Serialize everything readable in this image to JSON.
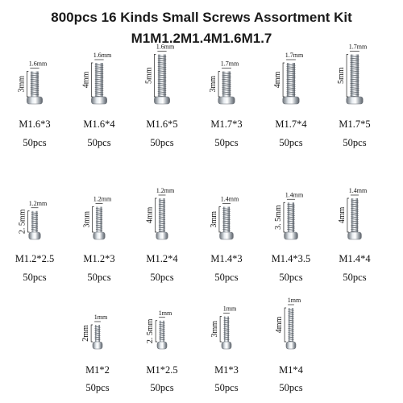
{
  "title_line1": "800pcs 16 Kinds Small Screws Assortment Kit",
  "title_line2": "M1M1.2M1.4M1.6M1.7",
  "screws": [
    {
      "name": "M1.6*3",
      "qty": "50pcs",
      "head": "1.6mm",
      "len": "3mm",
      "mm_len": 3,
      "mm_d": 1.6
    },
    {
      "name": "M1.6*4",
      "qty": "50pcs",
      "head": "1.6mm",
      "len": "4mm",
      "mm_len": 4,
      "mm_d": 1.6
    },
    {
      "name": "M1.6*5",
      "qty": "50pcs",
      "head": "1.6mm",
      "len": "5mm",
      "mm_len": 5,
      "mm_d": 1.6
    },
    {
      "name": "M1.7*3",
      "qty": "50pcs",
      "head": "1.7mm",
      "len": "3mm",
      "mm_len": 3,
      "mm_d": 1.7
    },
    {
      "name": "M1.7*4",
      "qty": "50pcs",
      "head": "1.7mm",
      "len": "4mm",
      "mm_len": 4,
      "mm_d": 1.7
    },
    {
      "name": "M1.7*5",
      "qty": "50pcs",
      "head": "1.7mm",
      "len": "5mm",
      "mm_len": 5,
      "mm_d": 1.7
    },
    {
      "name": "M1.2*2.5",
      "qty": "50pcs",
      "head": "1.2mm",
      "len": "2. 5mm",
      "mm_len": 2.5,
      "mm_d": 1.2
    },
    {
      "name": "M1.2*3",
      "qty": "50pcs",
      "head": "1.2mm",
      "len": "3mm",
      "mm_len": 3,
      "mm_d": 1.2
    },
    {
      "name": "M1.2*4",
      "qty": "50pcs",
      "head": "1.2mm",
      "len": "4mm",
      "mm_len": 4,
      "mm_d": 1.2
    },
    {
      "name": "M1.4*3",
      "qty": "50pcs",
      "head": "1.4mm",
      "len": "3mm",
      "mm_len": 3,
      "mm_d": 1.4
    },
    {
      "name": "M1.4*3.5",
      "qty": "50pcs",
      "head": "1.4mm",
      "len": "3. 5mm",
      "mm_len": 3.5,
      "mm_d": 1.4
    },
    {
      "name": "M1.4*4",
      "qty": "50pcs",
      "head": "1.4mm",
      "len": "4mm",
      "mm_len": 4,
      "mm_d": 1.4
    },
    {
      "name": "M1*2",
      "qty": "50pcs",
      "head": "1mm",
      "len": "2mm",
      "mm_len": 2,
      "mm_d": 1
    },
    {
      "name": "M1*2.5",
      "qty": "50pcs",
      "head": "1mm",
      "len": "2. 5mm",
      "mm_len": 2.5,
      "mm_d": 1
    },
    {
      "name": "M1*3",
      "qty": "50pcs",
      "head": "1mm",
      "len": "3mm",
      "mm_len": 3,
      "mm_d": 1
    },
    {
      "name": "M1*4",
      "qty": "50pcs",
      "head": "1mm",
      "len": "4mm",
      "mm_len": 4,
      "mm_d": 1
    }
  ]
}
